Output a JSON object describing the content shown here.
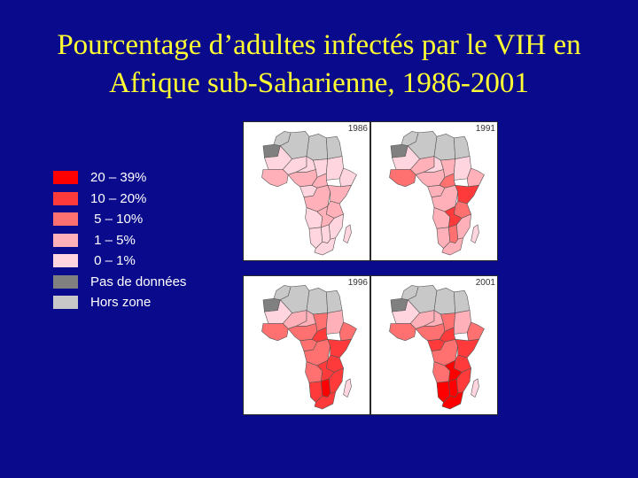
{
  "slide": {
    "title_line1": "Pourcentage d’adultes infectés par le VIH en",
    "title_line2": "Afrique sub-Saharienne, 1986-2001"
  },
  "legend": [
    {
      "label": "20 – 39%",
      "color": "#ff0000"
    },
    {
      "label": "10 – 20%",
      "color": "#ff3a3a"
    },
    {
      "label": " 5 – 10%",
      "color": "#ff7070"
    },
    {
      "label": " 1 – 5%",
      "color": "#ffb0b8"
    },
    {
      "label": " 0 – 1%",
      "color": "#ffd6e0"
    },
    {
      "label": "Pas de données",
      "color": "#808080"
    },
    {
      "label": "Hors zone",
      "color": "#c8c8c8"
    }
  ],
  "maps": [
    {
      "year": "1986"
    },
    {
      "year": "1991"
    },
    {
      "year": "1996"
    },
    {
      "year": "2001"
    }
  ],
  "colors": {
    "background": "#0a0a8c",
    "title": "#ffff33",
    "map_border": "#555555"
  }
}
